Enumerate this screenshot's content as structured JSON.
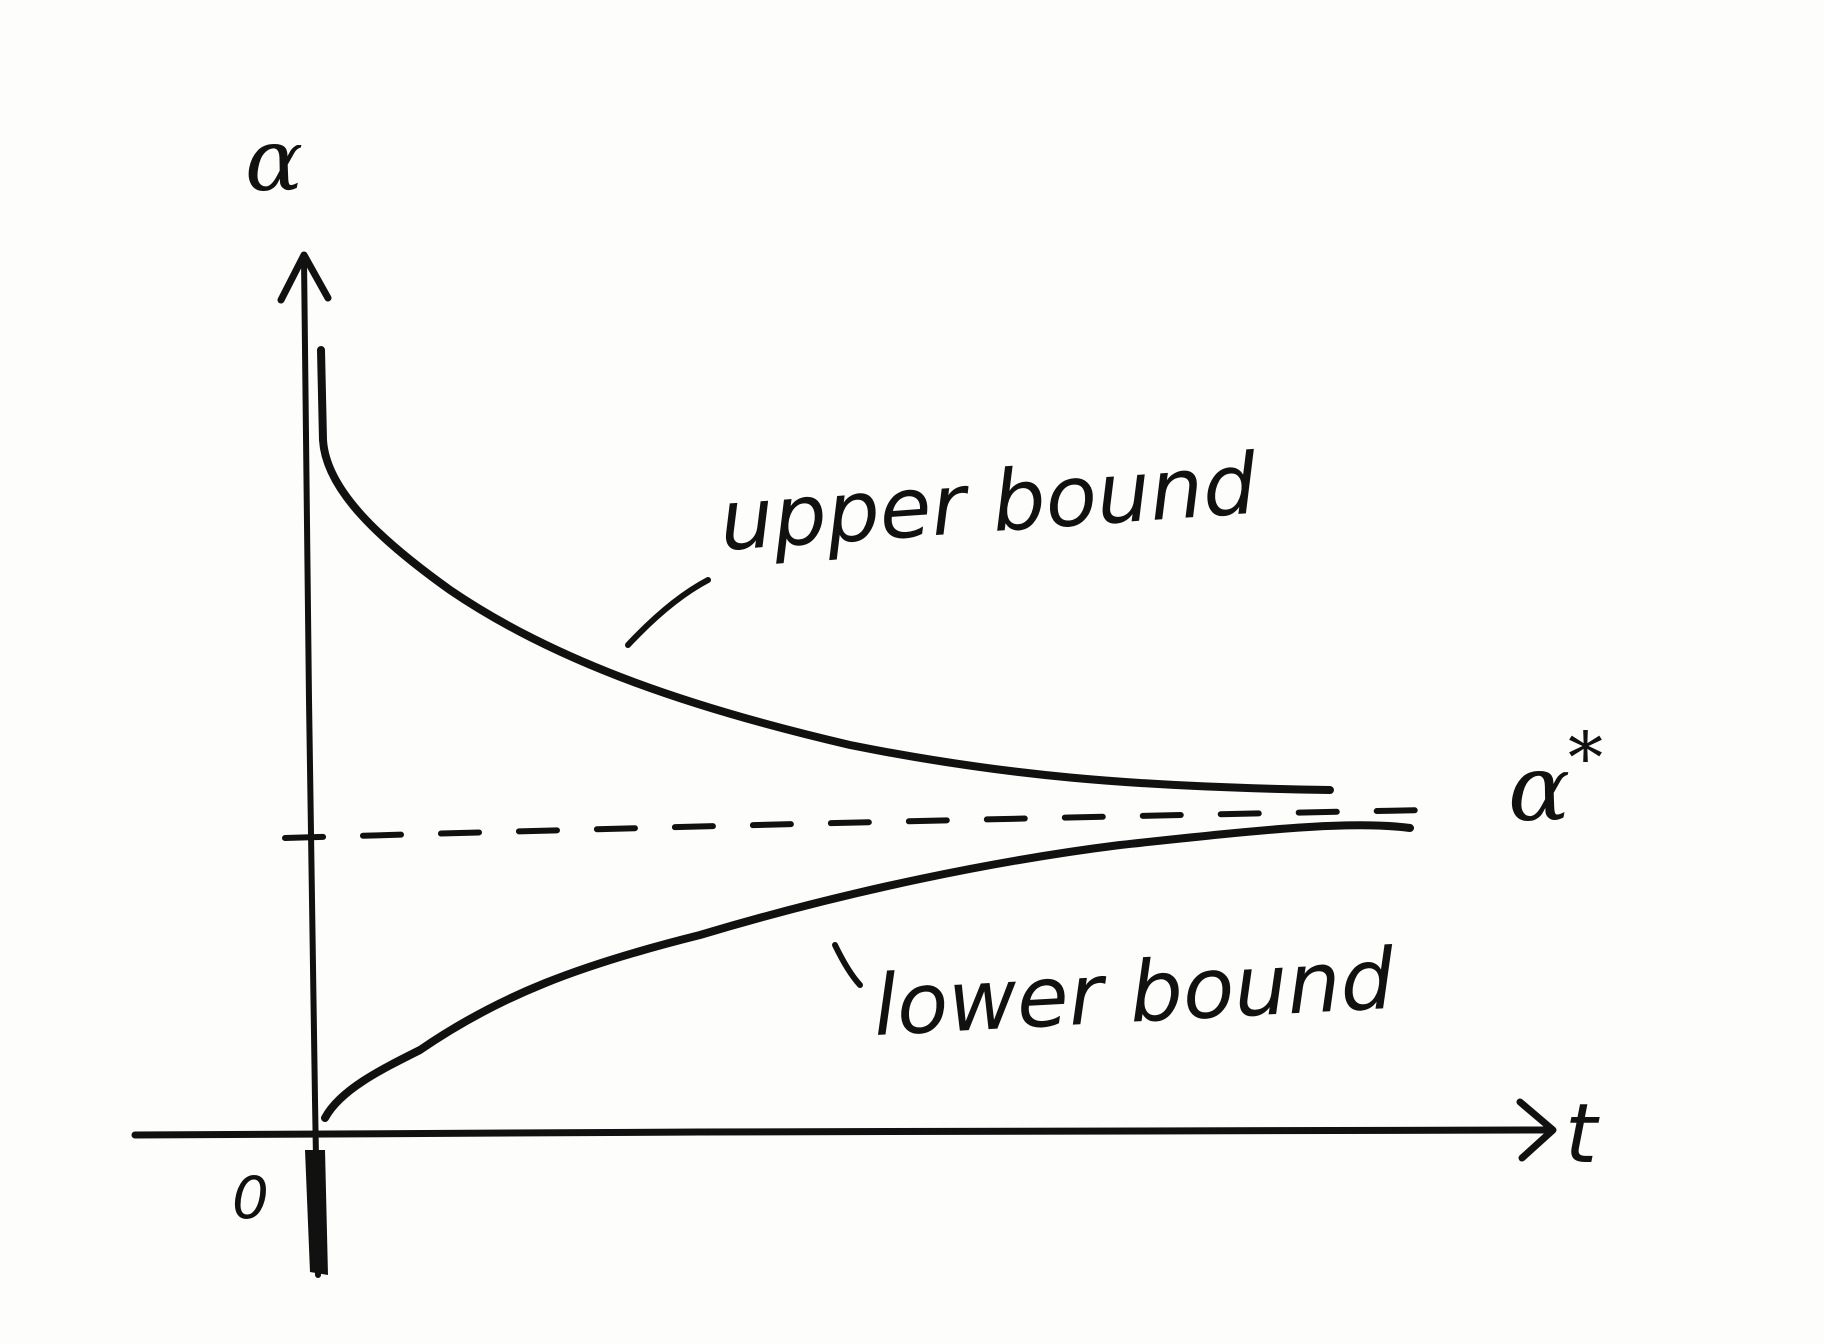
{
  "diagram": {
    "y_axis_label": "α",
    "x_axis_label": "t",
    "origin_label": "0",
    "limit_label": "α",
    "limit_superscript": "*",
    "upper_curve_label": "upper bound",
    "lower_curve_label": "lower bound",
    "ink_color": "#111111",
    "paper_color": "#fdfdfb"
  }
}
